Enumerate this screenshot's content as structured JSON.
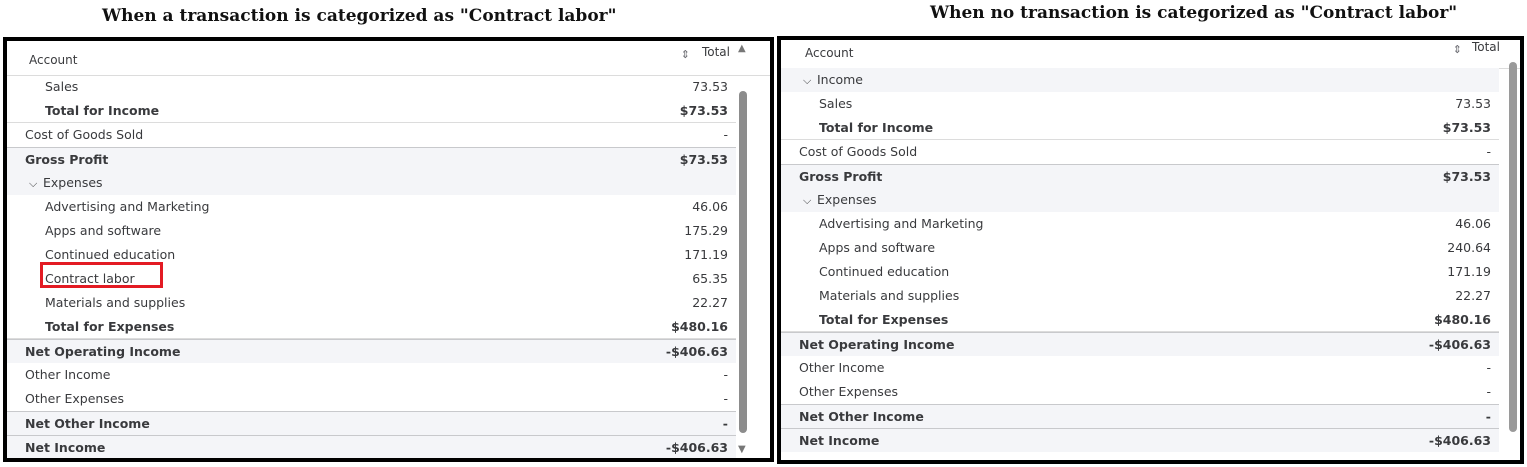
{
  "left": {
    "caption": "When a transaction is categorized as \"Contract labor\"",
    "header": {
      "account": "Account",
      "total": "Total"
    },
    "rows": [
      {
        "label": "Sales",
        "value": "73.53",
        "indent": 1,
        "bold": false
      },
      {
        "label": "Total for Income",
        "value": "$73.53",
        "indent": 1,
        "bold": true
      },
      {
        "label": "Cost of Goods Sold",
        "value": "-",
        "indent": 0,
        "bold": false
      },
      {
        "label": "Gross Profit",
        "value": "$73.53",
        "indent": 0,
        "bold": true
      },
      {
        "label": "Expenses",
        "value": "",
        "indent": 0,
        "bold": false,
        "group": true
      },
      {
        "label": "Advertising and Marketing",
        "value": "46.06",
        "indent": 1,
        "bold": false
      },
      {
        "label": "Apps and software",
        "value": "175.29",
        "indent": 1,
        "bold": false
      },
      {
        "label": "Continued education",
        "value": "171.19",
        "indent": 1,
        "bold": false
      },
      {
        "label": "Contract labor",
        "value": "65.35",
        "indent": 1,
        "bold": false,
        "highlight": true
      },
      {
        "label": "Materials and supplies",
        "value": "22.27",
        "indent": 1,
        "bold": false
      },
      {
        "label": "Total for Expenses",
        "value": "$480.16",
        "indent": 1,
        "bold": true
      },
      {
        "label": "Net Operating Income",
        "value": "-$406.63",
        "indent": 0,
        "bold": true
      },
      {
        "label": "Other Income",
        "value": "-",
        "indent": 0,
        "bold": false
      },
      {
        "label": "Other Expenses",
        "value": "-",
        "indent": 0,
        "bold": false
      },
      {
        "label": "Net Other Income",
        "value": "-",
        "indent": 0,
        "bold": true
      },
      {
        "label": "Net Income",
        "value": "-$406.63",
        "indent": 0,
        "bold": true
      }
    ]
  },
  "right": {
    "caption": "When no transaction is categorized as \"Contract labor\"",
    "header": {
      "account": "Account",
      "total": "Total"
    },
    "rows": [
      {
        "label": "Income",
        "value": "",
        "indent": 0,
        "bold": false,
        "group": true
      },
      {
        "label": "Sales",
        "value": "73.53",
        "indent": 1,
        "bold": false
      },
      {
        "label": "Total for Income",
        "value": "$73.53",
        "indent": 1,
        "bold": true
      },
      {
        "label": "Cost of Goods Sold",
        "value": "-",
        "indent": 0,
        "bold": false
      },
      {
        "label": "Gross Profit",
        "value": "$73.53",
        "indent": 0,
        "bold": true
      },
      {
        "label": "Expenses",
        "value": "",
        "indent": 0,
        "bold": false,
        "group": true
      },
      {
        "label": "Advertising and Marketing",
        "value": "46.06",
        "indent": 1,
        "bold": false
      },
      {
        "label": "Apps and software",
        "value": "240.64",
        "indent": 1,
        "bold": false
      },
      {
        "label": "Continued education",
        "value": "171.19",
        "indent": 1,
        "bold": false
      },
      {
        "label": "Materials and supplies",
        "value": "22.27",
        "indent": 1,
        "bold": false
      },
      {
        "label": "Total for Expenses",
        "value": "$480.16",
        "indent": 1,
        "bold": true
      },
      {
        "label": "Net Operating Income",
        "value": "-$406.63",
        "indent": 0,
        "bold": true
      },
      {
        "label": "Other Income",
        "value": "-",
        "indent": 0,
        "bold": false
      },
      {
        "label": "Other Expenses",
        "value": "-",
        "indent": 0,
        "bold": false
      },
      {
        "label": "Net Other Income",
        "value": "-",
        "indent": 0,
        "bold": true
      },
      {
        "label": "Net Income",
        "value": "-$406.63",
        "indent": 0,
        "bold": true
      }
    ]
  },
  "icons": {
    "sort": "sort-arrows-icon",
    "chevron": "chevron-down-icon",
    "scroll_up": "scroll-up-arrow-icon",
    "scroll_down": "scroll-down-arrow-icon"
  },
  "colors": {
    "highlight": "#e31b23",
    "shade": "#f4f5f8",
    "text": "#393a3d"
  }
}
